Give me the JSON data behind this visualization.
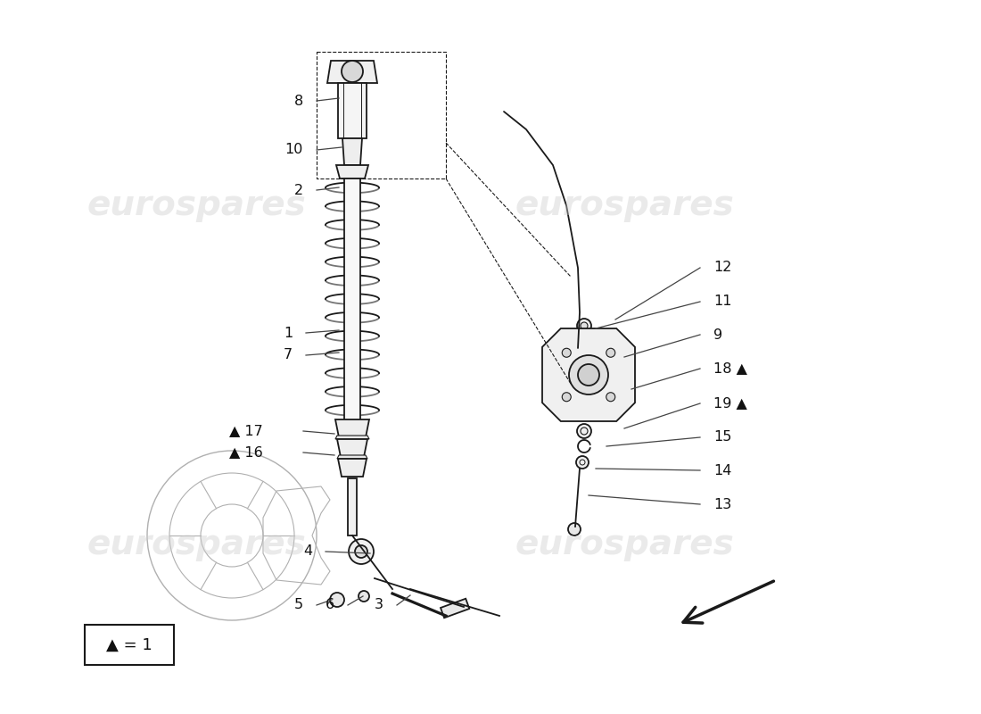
{
  "bg_color": "#ffffff",
  "line_color": "#1a1a1a",
  "watermark_text": "eurospares",
  "watermark_color": "#cccccc",
  "fig_width": 11.0,
  "fig_height": 8.0,
  "dpi": 100
}
